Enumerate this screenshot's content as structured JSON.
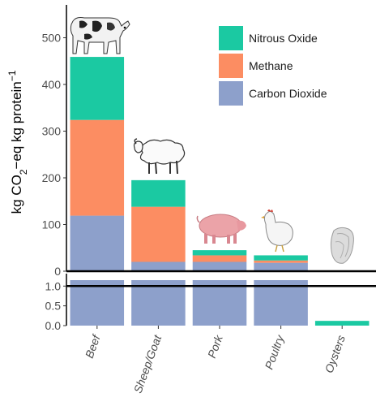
{
  "chart_data": {
    "type": "bar",
    "stacked": true,
    "broken_axis": true,
    "ylabel_parts": [
      "kg CO",
      "2",
      "−eq kg protein",
      "−1"
    ],
    "categories": [
      "Beef",
      "Sheep/Goat",
      "Pork",
      "Poultry",
      "Oysters"
    ],
    "upper_panel": {
      "ylim": [
        0,
        560
      ],
      "yticks": [
        0,
        100,
        200,
        300,
        400,
        500
      ],
      "ytick_labels": [
        "0",
        "100",
        "200",
        "300",
        "400",
        "500"
      ]
    },
    "lower_panel": {
      "ylim": [
        0,
        1.15
      ],
      "yticks": [
        0.0,
        0.5,
        1.0
      ],
      "ytick_labels": [
        "0.0",
        "0.5",
        "1.0"
      ]
    },
    "series": [
      {
        "name": "Carbon Dioxide",
        "color": "#8da0cb",
        "values": [
          119,
          20,
          20,
          18,
          0
        ]
      },
      {
        "name": "Methane",
        "color": "#fc8d62",
        "values": [
          205,
          118,
          14,
          5,
          0
        ]
      },
      {
        "name": "Nitrous Oxide",
        "color": "#1bc9a2",
        "values": [
          135,
          57,
          11,
          11,
          0.12
        ]
      }
    ],
    "legend_order": [
      "Nitrous Oxide",
      "Methane",
      "Carbon Dioxide"
    ],
    "legend_position": "top-right",
    "grid": false,
    "icons": [
      "cow-icon",
      "sheep-icon",
      "pig-icon",
      "chicken-icon",
      "oyster-icon"
    ]
  }
}
